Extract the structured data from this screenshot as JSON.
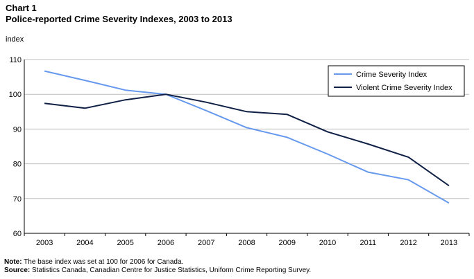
{
  "chart_label": "Chart 1",
  "chart_title": "Police-reported Crime Severity Indexes, 2003 to 2013",
  "y_unit": "index",
  "note_label": "Note:",
  "note_text": " The base index was set at 100 for 2006  for Canada.",
  "source_label": "Source:",
  "source_text": " Statistics Canada, Canadian Centre for Justice Statistics, Uniform Crime Reporting Survey.",
  "chart_data": {
    "type": "line",
    "title": "Police-reported Crime Severity Indexes, 2003 to 2013",
    "xlabel": "",
    "ylabel": "index",
    "categories": [
      "2003",
      "2004",
      "2005",
      "2006",
      "2007",
      "2008",
      "2009",
      "2010",
      "2011",
      "2012",
      "2013"
    ],
    "ylim": [
      60,
      110
    ],
    "yticks": [
      60,
      70,
      80,
      90,
      100,
      110
    ],
    "grid": "horizontal",
    "legend_position": "top-right",
    "series": [
      {
        "name": "Crime Severity Index",
        "color": "#6699ee",
        "values": [
          106.7,
          104.0,
          101.2,
          100.0,
          95.3,
          90.4,
          87.6,
          82.8,
          77.6,
          75.4,
          68.7
        ]
      },
      {
        "name": "Violent Crime Severity Index",
        "color": "#0f1f45",
        "values": [
          97.4,
          96.0,
          98.4,
          100.0,
          97.7,
          95.0,
          94.2,
          89.2,
          85.7,
          81.9,
          73.7
        ]
      }
    ]
  }
}
